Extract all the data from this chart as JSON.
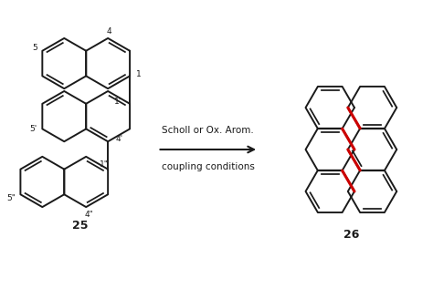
{
  "background": "#ffffff",
  "line_color": "#1a1a1a",
  "red_color": "#cc0000",
  "arrow_text_line1": "Scholl or Ox. Arom.",
  "arrow_text_line2": "coupling conditions",
  "label_25": "25",
  "label_26": "26",
  "fig_width": 4.74,
  "fig_height": 3.28,
  "dpi": 100
}
